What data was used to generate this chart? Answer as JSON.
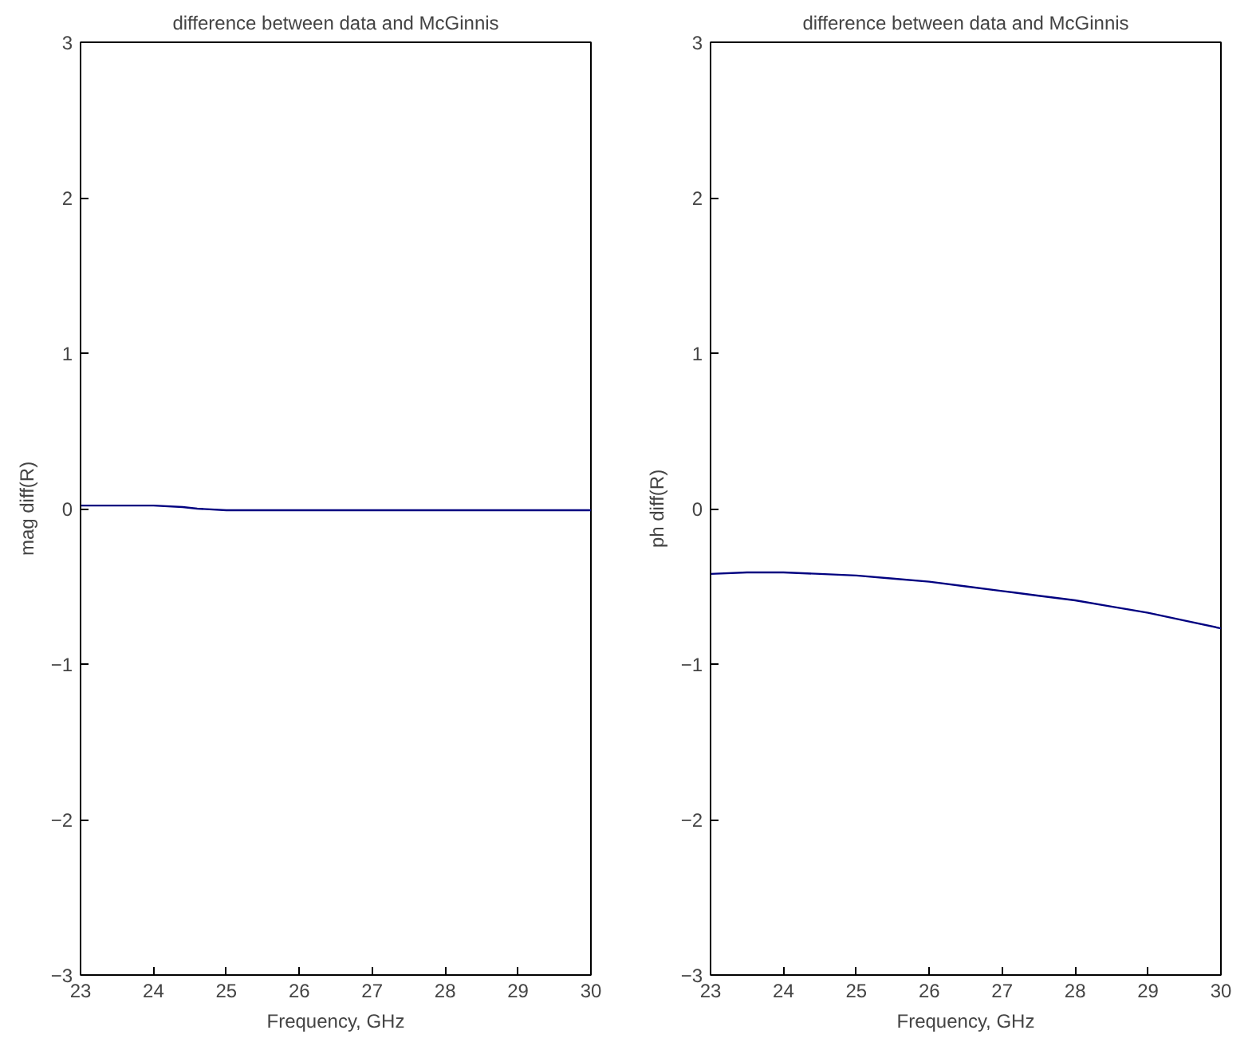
{
  "chart_data": [
    {
      "type": "line",
      "title": "difference between data and McGinnis",
      "xlabel": "Frequency, GHz",
      "ylabel": "mag diff(R)",
      "x": [
        23,
        23.5,
        24,
        24.4,
        24.6,
        25,
        26,
        27,
        28,
        29,
        30
      ],
      "series": [
        {
          "color": "#000080",
          "values": [
            0.02,
            0.02,
            0.02,
            0.01,
            0,
            -0.01,
            -0.01,
            -0.01,
            -0.01,
            -0.01,
            -0.01
          ]
        }
      ],
      "xlim": [
        23,
        30
      ],
      "ylim": [
        -3,
        3
      ],
      "xticks": [
        23,
        24,
        25,
        26,
        27,
        28,
        29,
        30
      ],
      "yticks": [
        -3,
        -2,
        -1,
        0,
        1,
        2,
        3
      ]
    },
    {
      "type": "line",
      "title": "difference between data and McGinnis",
      "xlabel": "Frequency, GHz",
      "ylabel": "ph diff(R)",
      "x": [
        23,
        23.5,
        24,
        24.5,
        25,
        25.5,
        26,
        26.5,
        27,
        27.5,
        28,
        28.5,
        29,
        29.5,
        30
      ],
      "series": [
        {
          "color": "#000080",
          "values": [
            -0.42,
            -0.41,
            -0.41,
            -0.42,
            -0.43,
            -0.45,
            -0.47,
            -0.5,
            -0.53,
            -0.56,
            -0.59,
            -0.63,
            -0.67,
            -0.72,
            -0.77
          ]
        }
      ],
      "xlim": [
        23,
        30
      ],
      "ylim": [
        -3,
        3
      ],
      "xticks": [
        23,
        24,
        25,
        26,
        27,
        28,
        29,
        30
      ],
      "yticks": [
        -3,
        -2,
        -1,
        0,
        1,
        2,
        3
      ]
    }
  ]
}
